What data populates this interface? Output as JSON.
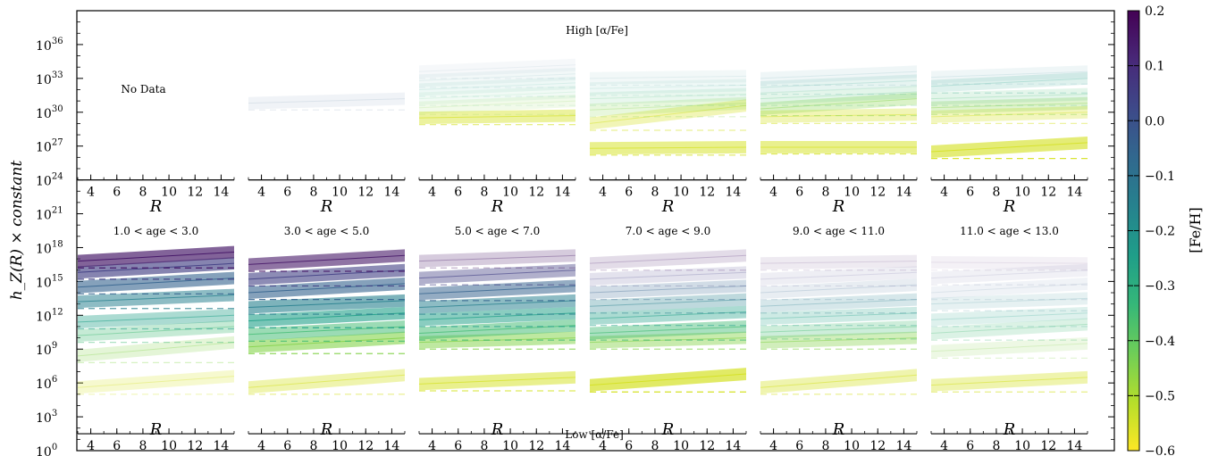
{
  "figure": {
    "ylabel": "h_Z(R) × constant",
    "top_label": "High [α/Fe]",
    "bottom_label": "Low [α/Fe]",
    "no_data_label": "No Data",
    "y_ticks": [
      {
        "exp": "0"
      },
      {
        "exp": "3"
      },
      {
        "exp": "6"
      },
      {
        "exp": "9"
      },
      {
        "exp": "12"
      },
      {
        "exp": "15"
      },
      {
        "exp": "18"
      },
      {
        "exp": "21"
      },
      {
        "exp": "24"
      },
      {
        "exp": "27"
      },
      {
        "exp": "30"
      },
      {
        "exp": "33"
      },
      {
        "exp": "36"
      }
    ],
    "y_tick_base": "10",
    "x_ticks": [
      "4",
      "6",
      "8",
      "10",
      "12",
      "14"
    ],
    "x_label": "R",
    "age_bins": [
      "1.0 < age < 3.0",
      "3.0 < age < 5.0",
      "5.0 < age < 7.0",
      "7.0 < age < 9.0",
      "9.0 < age < 11.0",
      "11.0 < age < 13.0"
    ]
  },
  "colorbar": {
    "label": "[Fe/H]",
    "ticks": [
      "0.2",
      "0.1",
      "0.0",
      "−0.1",
      "−0.2",
      "−0.3",
      "−0.4",
      "−0.5",
      "−0.6"
    ],
    "colormap": "viridis (reversed: yellow = low [Fe/H], purple = high [Fe/H])",
    "stops": [
      "#fde725",
      "#b5de2b",
      "#6ece58",
      "#35b779",
      "#1f9e89",
      "#26828e",
      "#31688e",
      "#3e4989",
      "#482878",
      "#440154"
    ]
  },
  "chart_data": {
    "type": "line",
    "description_units": "log10(h_Z × constant) vs R in kpc",
    "x_range": [
      3,
      15
    ],
    "y_range_log10": [
      0,
      39
    ],
    "yscale": "log",
    "feh_bins": [
      -0.55,
      -0.45,
      -0.35,
      -0.25,
      -0.15,
      -0.05,
      0.05,
      0.15
    ],
    "panels": [
      {
        "row": "high_alpha",
        "age_bin": "1.0 < age < 3.0",
        "has_data": false,
        "series": []
      },
      {
        "row": "high_alpha",
        "age_bin": "3.0 < age < 5.0",
        "has_data": true,
        "series": [
          {
            "feh": -0.05,
            "y_start": 30.8,
            "y_end": 31.2,
            "alpha": 0.1
          }
        ]
      },
      {
        "row": "high_alpha",
        "age_bin": "5.0 < age < 7.0",
        "has_data": true,
        "series": [
          {
            "feh": -0.55,
            "y_start": 29.5,
            "y_end": 29.7,
            "alpha": 0.6
          },
          {
            "feh": -0.45,
            "y_start": 30.4,
            "y_end": 31.0,
            "alpha": 0.15
          },
          {
            "feh": -0.35,
            "y_start": 31.2,
            "y_end": 31.8,
            "alpha": 0.1
          },
          {
            "feh": -0.25,
            "y_start": 32.0,
            "y_end": 32.6,
            "alpha": 0.1
          },
          {
            "feh": -0.15,
            "y_start": 32.8,
            "y_end": 33.4,
            "alpha": 0.08
          },
          {
            "feh": -0.05,
            "y_start": 33.6,
            "y_end": 34.2,
            "alpha": 0.06
          }
        ]
      },
      {
        "row": "high_alpha",
        "age_bin": "7.0 < age < 9.0",
        "has_data": true,
        "series": [
          {
            "feh": -0.55,
            "y_start": 26.8,
            "y_end": 26.9,
            "alpha": 0.7
          },
          {
            "feh": -0.55,
            "y_start": 29.0,
            "y_end": 30.6,
            "alpha": 0.45
          },
          {
            "feh": -0.45,
            "y_start": 30.2,
            "y_end": 30.8,
            "alpha": 0.25
          },
          {
            "feh": -0.35,
            "y_start": 31.2,
            "y_end": 31.6,
            "alpha": 0.15
          },
          {
            "feh": -0.25,
            "y_start": 32.1,
            "y_end": 32.4,
            "alpha": 0.1
          },
          {
            "feh": -0.15,
            "y_start": 33.0,
            "y_end": 33.2,
            "alpha": 0.08
          }
        ]
      },
      {
        "row": "high_alpha",
        "age_bin": "9.0 < age < 11.0",
        "has_data": true,
        "series": [
          {
            "feh": -0.55,
            "y_start": 26.9,
            "y_end": 26.9,
            "alpha": 0.7
          },
          {
            "feh": -0.55,
            "y_start": 29.6,
            "y_end": 29.8,
            "alpha": 0.45
          },
          {
            "feh": -0.45,
            "y_start": 30.3,
            "y_end": 31.2,
            "alpha": 0.4
          },
          {
            "feh": -0.35,
            "y_start": 31.2,
            "y_end": 31.8,
            "alpha": 0.2
          },
          {
            "feh": -0.25,
            "y_start": 32.2,
            "y_end": 32.8,
            "alpha": 0.15
          },
          {
            "feh": -0.15,
            "y_start": 33.0,
            "y_end": 33.6,
            "alpha": 0.1
          }
        ]
      },
      {
        "row": "high_alpha",
        "age_bin": "11.0 < age < 13.0",
        "has_data": true,
        "series": [
          {
            "feh": -0.55,
            "y_start": 26.5,
            "y_end": 27.3,
            "alpha": 0.85
          },
          {
            "feh": -0.55,
            "y_start": 29.6,
            "y_end": 30.0,
            "alpha": 0.4
          },
          {
            "feh": -0.45,
            "y_start": 30.4,
            "y_end": 30.8,
            "alpha": 0.35
          },
          {
            "feh": -0.35,
            "y_start": 31.2,
            "y_end": 31.6,
            "alpha": 0.2
          },
          {
            "feh": -0.25,
            "y_start": 32.3,
            "y_end": 33.0,
            "alpha": 0.2
          },
          {
            "feh": -0.15,
            "y_start": 33.1,
            "y_end": 33.6,
            "alpha": 0.1
          }
        ]
      },
      {
        "row": "low_alpha",
        "age_bin": "1.0 < age < 3.0",
        "has_data": true,
        "series": [
          {
            "feh": -0.55,
            "y_start": 5.6,
            "y_end": 6.6,
            "alpha": 0.3
          },
          {
            "feh": -0.45,
            "y_start": 8.4,
            "y_end": 9.6,
            "alpha": 0.3
          },
          {
            "feh": -0.35,
            "y_start": 10.2,
            "y_end": 11.0,
            "alpha": 0.4
          },
          {
            "feh": -0.25,
            "y_start": 11.4,
            "y_end": 12.0,
            "alpha": 0.5
          },
          {
            "feh": -0.15,
            "y_start": 13.2,
            "y_end": 13.8,
            "alpha": 0.7
          },
          {
            "feh": -0.05,
            "y_start": 14.5,
            "y_end": 15.3,
            "alpha": 0.8
          },
          {
            "feh": 0.05,
            "y_start": 15.8,
            "y_end": 16.6,
            "alpha": 0.85
          },
          {
            "feh": 0.15,
            "y_start": 16.8,
            "y_end": 17.6,
            "alpha": 0.9
          }
        ]
      },
      {
        "row": "low_alpha",
        "age_bin": "3.0 < age < 5.0",
        "has_data": true,
        "series": [
          {
            "feh": -0.55,
            "y_start": 5.6,
            "y_end": 6.7,
            "alpha": 0.5
          },
          {
            "feh": -0.45,
            "y_start": 9.2,
            "y_end": 10.0,
            "alpha": 0.8
          },
          {
            "feh": -0.35,
            "y_start": 10.3,
            "y_end": 11.0,
            "alpha": 0.7
          },
          {
            "feh": -0.25,
            "y_start": 11.5,
            "y_end": 12.2,
            "alpha": 0.8
          },
          {
            "feh": -0.15,
            "y_start": 12.7,
            "y_end": 13.3,
            "alpha": 0.8
          },
          {
            "feh": -0.05,
            "y_start": 14.0,
            "y_end": 14.8,
            "alpha": 0.8
          },
          {
            "feh": 0.05,
            "y_start": 15.2,
            "y_end": 16.0,
            "alpha": 0.8
          },
          {
            "feh": 0.15,
            "y_start": 16.5,
            "y_end": 17.3,
            "alpha": 0.8
          }
        ]
      },
      {
        "row": "low_alpha",
        "age_bin": "5.0 < age < 7.0",
        "has_data": true,
        "series": [
          {
            "feh": -0.55,
            "y_start": 5.9,
            "y_end": 6.5,
            "alpha": 0.7
          },
          {
            "feh": -0.45,
            "y_start": 9.6,
            "y_end": 10.0,
            "alpha": 0.7
          },
          {
            "feh": -0.35,
            "y_start": 10.4,
            "y_end": 11.1,
            "alpha": 0.7
          },
          {
            "feh": -0.25,
            "y_start": 11.6,
            "y_end": 12.2,
            "alpha": 0.7
          },
          {
            "feh": -0.15,
            "y_start": 12.7,
            "y_end": 13.3,
            "alpha": 0.7
          },
          {
            "feh": -0.05,
            "y_start": 13.9,
            "y_end": 14.6,
            "alpha": 0.7
          },
          {
            "feh": 0.05,
            "y_start": 15.3,
            "y_end": 16.0,
            "alpha": 0.55
          },
          {
            "feh": 0.15,
            "y_start": 16.8,
            "y_end": 17.3,
            "alpha": 0.3
          }
        ]
      },
      {
        "row": "low_alpha",
        "age_bin": "7.0 < age < 9.0",
        "has_data": true,
        "series": [
          {
            "feh": -0.55,
            "y_start": 5.8,
            "y_end": 6.8,
            "alpha": 0.95
          },
          {
            "feh": -0.45,
            "y_start": 9.6,
            "y_end": 10.0,
            "alpha": 0.6
          },
          {
            "feh": -0.35,
            "y_start": 10.4,
            "y_end": 11.0,
            "alpha": 0.6
          },
          {
            "feh": -0.25,
            "y_start": 11.7,
            "y_end": 12.3,
            "alpha": 0.5
          },
          {
            "feh": -0.15,
            "y_start": 12.8,
            "y_end": 13.4,
            "alpha": 0.4
          },
          {
            "feh": -0.05,
            "y_start": 14.0,
            "y_end": 14.6,
            "alpha": 0.3
          },
          {
            "feh": 0.05,
            "y_start": 15.2,
            "y_end": 15.8,
            "alpha": 0.2
          },
          {
            "feh": 0.15,
            "y_start": 16.6,
            "y_end": 17.3,
            "alpha": 0.2
          }
        ]
      },
      {
        "row": "low_alpha",
        "age_bin": "9.0 < age < 11.0",
        "has_data": true,
        "series": [
          {
            "feh": -0.55,
            "y_start": 5.6,
            "y_end": 6.7,
            "alpha": 0.5
          },
          {
            "feh": -0.45,
            "y_start": 9.6,
            "y_end": 10.0,
            "alpha": 0.5
          },
          {
            "feh": -0.35,
            "y_start": 10.5,
            "y_end": 11.0,
            "alpha": 0.35
          },
          {
            "feh": -0.25,
            "y_start": 11.7,
            "y_end": 12.2,
            "alpha": 0.3
          },
          {
            "feh": -0.15,
            "y_start": 12.8,
            "y_end": 13.4,
            "alpha": 0.25
          },
          {
            "feh": -0.05,
            "y_start": 14.0,
            "y_end": 14.7,
            "alpha": 0.15
          },
          {
            "feh": 0.05,
            "y_start": 15.2,
            "y_end": 15.8,
            "alpha": 0.12
          },
          {
            "feh": 0.15,
            "y_start": 16.6,
            "y_end": 16.8,
            "alpha": 0.12
          }
        ]
      },
      {
        "row": "low_alpha",
        "age_bin": "11.0 < age < 13.0",
        "has_data": true,
        "series": [
          {
            "feh": -0.55,
            "y_start": 5.8,
            "y_end": 6.5,
            "alpha": 0.5
          },
          {
            "feh": -0.45,
            "y_start": 8.8,
            "y_end": 9.5,
            "alpha": 0.2
          },
          {
            "feh": -0.35,
            "y_start": 10.4,
            "y_end": 11.2,
            "alpha": 0.25
          },
          {
            "feh": -0.25,
            "y_start": 11.6,
            "y_end": 12.2,
            "alpha": 0.2
          },
          {
            "feh": -0.15,
            "y_start": 13.0,
            "y_end": 13.5,
            "alpha": 0.15
          },
          {
            "feh": -0.05,
            "y_start": 14.0,
            "y_end": 14.8,
            "alpha": 0.1
          },
          {
            "feh": 0.05,
            "y_start": 15.3,
            "y_end": 16.0,
            "alpha": 0.1
          },
          {
            "feh": 0.15,
            "y_start": 16.7,
            "y_end": 16.6,
            "alpha": 0.08
          }
        ]
      }
    ]
  }
}
